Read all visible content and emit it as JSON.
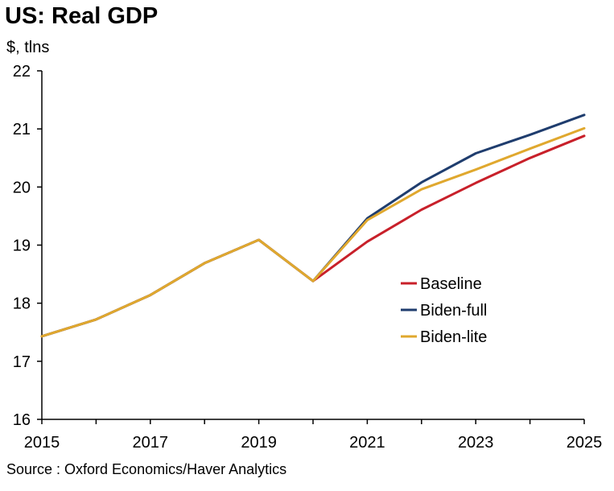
{
  "title": "US: Real GDP",
  "unit_label": "$, tlns",
  "source": "Source : Oxford Economics/Haver Analytics",
  "chart_data": {
    "type": "line",
    "title": "US: Real GDP",
    "ylabel": "$, tlns",
    "xlabel": "",
    "xlim": [
      2015,
      2025
    ],
    "ylim": [
      16,
      22
    ],
    "x_ticks": [
      "2015",
      "2017",
      "2019",
      "2021",
      "2023",
      "2025"
    ],
    "y_ticks": [
      "16",
      "17",
      "18",
      "19",
      "20",
      "21",
      "22"
    ],
    "grid": false,
    "legend_position": "right-center",
    "x": [
      2015,
      2016,
      2017,
      2018,
      2019,
      2020,
      2021,
      2022,
      2023,
      2024,
      2025
    ],
    "series": [
      {
        "name": "Baseline",
        "color": "#c8202a",
        "values": [
          17.43,
          17.72,
          18.14,
          18.69,
          19.09,
          18.38,
          19.06,
          19.61,
          20.07,
          20.5,
          20.88
        ]
      },
      {
        "name": "Biden-full",
        "color": "#1f3d6e",
        "values": [
          17.43,
          17.72,
          18.14,
          18.69,
          19.09,
          18.38,
          19.46,
          20.08,
          20.58,
          20.9,
          21.24
        ]
      },
      {
        "name": "Biden-lite",
        "color": "#e0a82e",
        "values": [
          17.43,
          17.72,
          18.14,
          18.69,
          19.09,
          18.38,
          19.43,
          19.96,
          20.3,
          20.66,
          21.01
        ]
      }
    ]
  }
}
